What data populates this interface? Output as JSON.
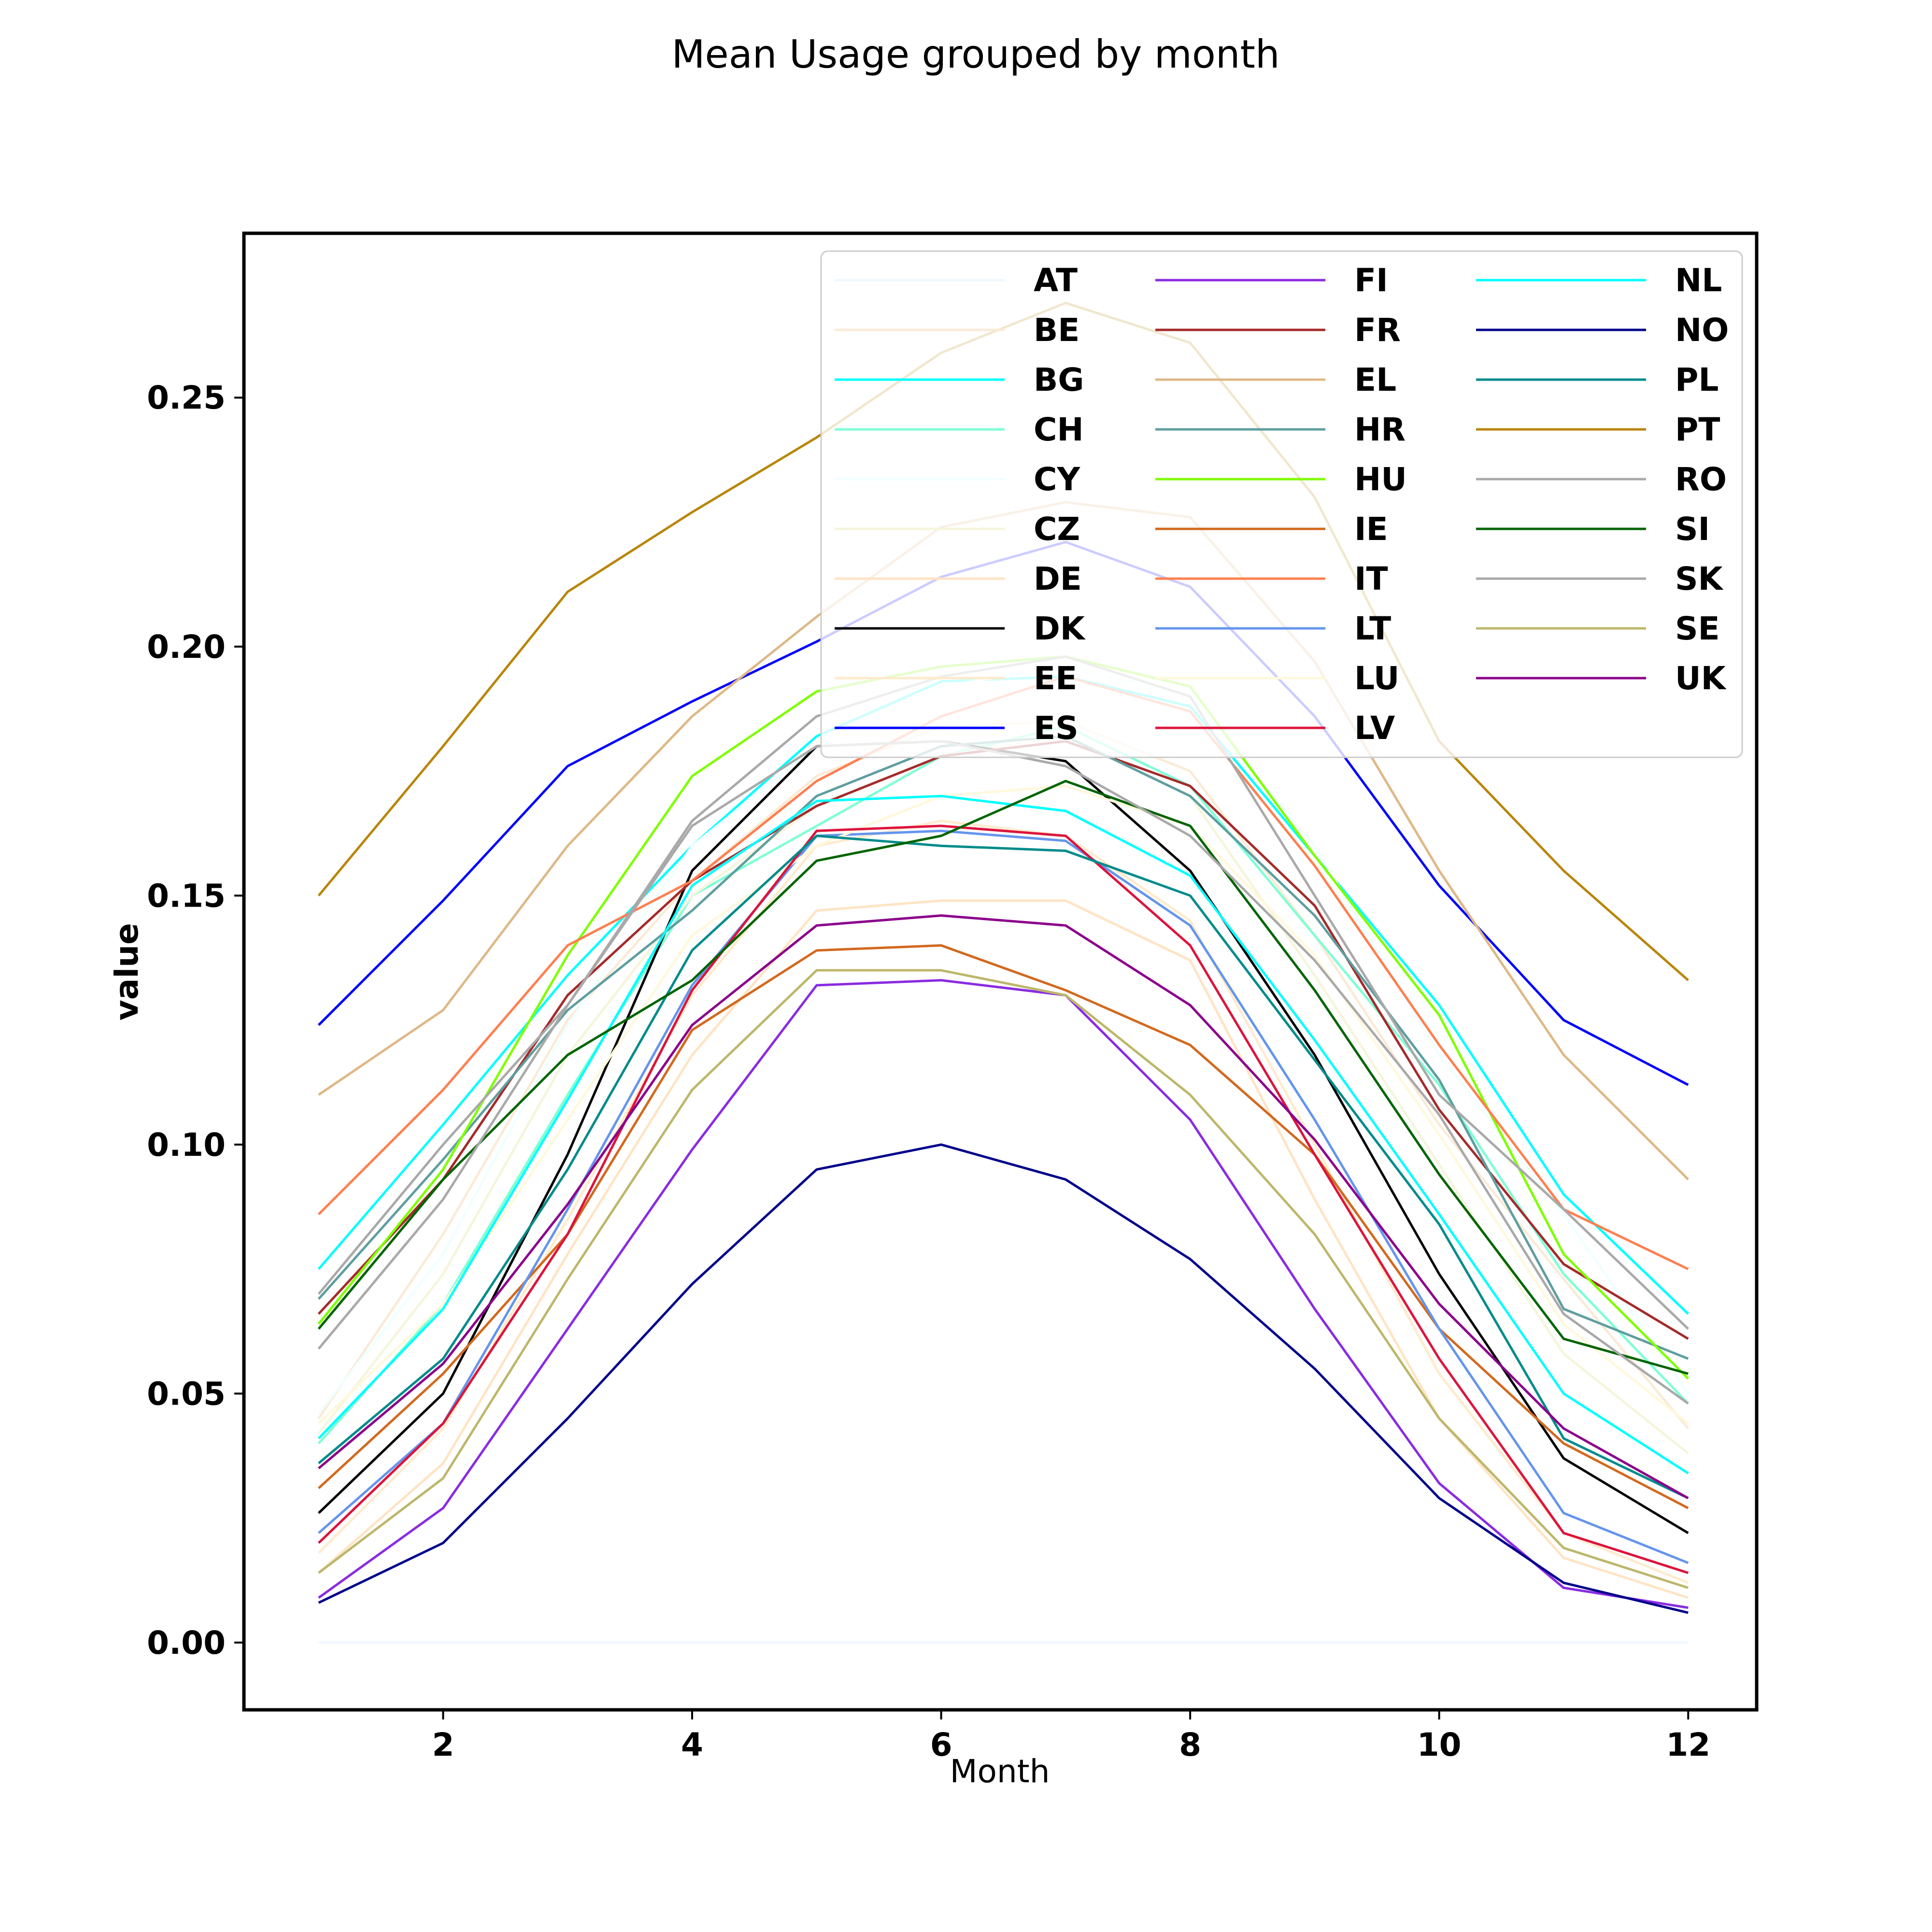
{
  "chart_data": {
    "type": "line",
    "title": "Mean Usage grouped by month",
    "xlabel": "Month",
    "ylabel": "value",
    "x": [
      1,
      2,
      3,
      4,
      5,
      6,
      7,
      8,
      9,
      10,
      11,
      12
    ],
    "xlim": [
      0.4,
      12.55
    ],
    "ylim": [
      -0.0135,
      0.283
    ],
    "xticks": [
      2,
      4,
      6,
      8,
      10,
      12
    ],
    "xtick_labels": [
      "2",
      "4",
      "6",
      "8",
      "10",
      "12"
    ],
    "yticks": [
      0.0,
      0.05,
      0.1,
      0.15,
      0.2,
      0.25
    ],
    "ytick_labels": [
      "0.00",
      "0.05",
      "0.10",
      "0.15",
      "0.20",
      "0.25"
    ],
    "grid": false,
    "legend": {
      "placement": "top-right",
      "columns": 3
    },
    "series": [
      {
        "name": "AT",
        "color": "#f0f8ff",
        "values": [
          0.0,
          0.0,
          0.0,
          0.0,
          0.0,
          0.0,
          0.0,
          0.0,
          0.0,
          0.0,
          0.0,
          0.0
        ]
      },
      {
        "name": "BE",
        "color": "#faebd7",
        "values": [
          0.045,
          0.082,
          0.125,
          0.153,
          0.174,
          0.184,
          0.185,
          0.175,
          0.142,
          0.104,
          0.073,
          0.043
        ]
      },
      {
        "name": "BG",
        "color": "#00ffff",
        "values": [
          0.075,
          0.104,
          0.134,
          0.16,
          0.182,
          0.193,
          0.194,
          0.188,
          0.158,
          0.128,
          0.09,
          0.066
        ]
      },
      {
        "name": "CH",
        "color": "#7fffd4",
        "values": [
          0.04,
          0.068,
          0.11,
          0.15,
          0.164,
          0.178,
          0.184,
          0.172,
          0.142,
          0.112,
          0.074,
          0.048
        ]
      },
      {
        "name": "CY",
        "color": "#f0ffff",
        "values": [
          0.046,
          0.078,
          0.124,
          0.16,
          0.18,
          0.192,
          0.196,
          0.19,
          0.16,
          0.118,
          0.086,
          0.05
        ]
      },
      {
        "name": "CZ",
        "color": "#f5f5dc",
        "values": [
          0.042,
          0.074,
          0.118,
          0.15,
          0.168,
          0.178,
          0.182,
          0.17,
          0.134,
          0.096,
          0.058,
          0.038
        ]
      },
      {
        "name": "DE",
        "color": "#ffe4c4",
        "values": [
          0.014,
          0.036,
          0.078,
          0.118,
          0.147,
          0.149,
          0.149,
          0.137,
          0.089,
          0.045,
          0.017,
          0.009
        ]
      },
      {
        "name": "DK",
        "color": "#000000",
        "values": [
          0.026,
          0.05,
          0.098,
          0.155,
          0.18,
          0.181,
          0.177,
          0.155,
          0.118,
          0.074,
          0.037,
          0.022
        ]
      },
      {
        "name": "EE",
        "color": "#ffebcd",
        "values": [
          0.018,
          0.043,
          0.085,
          0.13,
          0.16,
          0.165,
          0.162,
          0.145,
          0.1,
          0.054,
          0.022,
          0.012
        ]
      },
      {
        "name": "ES",
        "color": "#0000ff",
        "values": [
          0.124,
          0.149,
          0.176,
          0.189,
          0.201,
          0.214,
          0.221,
          0.212,
          0.186,
          0.152,
          0.125,
          0.112
        ]
      },
      {
        "name": "FI",
        "color": "#8a2be2",
        "values": [
          0.009,
          0.027,
          0.063,
          0.099,
          0.132,
          0.133,
          0.13,
          0.105,
          0.067,
          0.032,
          0.011,
          0.007
        ]
      },
      {
        "name": "FR",
        "color": "#a52a2a",
        "values": [
          0.066,
          0.093,
          0.13,
          0.153,
          0.168,
          0.178,
          0.181,
          0.172,
          0.148,
          0.107,
          0.076,
          0.061
        ]
      },
      {
        "name": "EL",
        "color": "#deb887",
        "values": [
          0.11,
          0.127,
          0.16,
          0.186,
          0.206,
          0.224,
          0.229,
          0.226,
          0.197,
          0.155,
          0.118,
          0.093
        ]
      },
      {
        "name": "HR",
        "color": "#5f9ea0",
        "values": [
          0.069,
          0.097,
          0.127,
          0.147,
          0.17,
          0.18,
          0.182,
          0.17,
          0.146,
          0.113,
          0.067,
          0.057
        ]
      },
      {
        "name": "HU",
        "color": "#7fff00",
        "values": [
          0.064,
          0.095,
          0.138,
          0.174,
          0.191,
          0.196,
          0.198,
          0.192,
          0.158,
          0.126,
          0.078,
          0.053
        ]
      },
      {
        "name": "IE",
        "color": "#d2691e",
        "values": [
          0.031,
          0.054,
          0.082,
          0.123,
          0.139,
          0.14,
          0.131,
          0.12,
          0.098,
          0.063,
          0.04,
          0.027
        ]
      },
      {
        "name": "IT",
        "color": "#ff7f50",
        "values": [
          0.086,
          0.111,
          0.14,
          0.153,
          0.173,
          0.186,
          0.194,
          0.187,
          0.156,
          0.12,
          0.087,
          0.075
        ]
      },
      {
        "name": "LT",
        "color": "#6495ed",
        "values": [
          0.022,
          0.044,
          0.087,
          0.132,
          0.162,
          0.163,
          0.161,
          0.144,
          0.105,
          0.063,
          0.026,
          0.016
        ]
      },
      {
        "name": "LU",
        "color": "#fff8dc",
        "values": [
          0.044,
          0.068,
          0.105,
          0.142,
          0.16,
          0.17,
          0.172,
          0.164,
          0.138,
          0.102,
          0.064,
          0.044
        ]
      },
      {
        "name": "LV",
        "color": "#dc143c",
        "values": [
          0.02,
          0.044,
          0.082,
          0.131,
          0.163,
          0.164,
          0.162,
          0.14,
          0.098,
          0.057,
          0.022,
          0.014
        ]
      },
      {
        "name": "NL",
        "color": "#00ffff",
        "values": [
          0.041,
          0.067,
          0.109,
          0.152,
          0.169,
          0.17,
          0.167,
          0.154,
          0.121,
          0.086,
          0.05,
          0.034
        ]
      },
      {
        "name": "NO",
        "color": "#00008b",
        "values": [
          0.008,
          0.02,
          0.045,
          0.072,
          0.095,
          0.1,
          0.093,
          0.077,
          0.055,
          0.029,
          0.012,
          0.006
        ]
      },
      {
        "name": "PL",
        "color": "#008b8b",
        "values": [
          0.036,
          0.057,
          0.095,
          0.139,
          0.162,
          0.16,
          0.159,
          0.15,
          0.117,
          0.084,
          0.041,
          0.029
        ]
      },
      {
        "name": "PT",
        "color": "#b8860b",
        "values": [
          0.15,
          0.18,
          0.211,
          0.227,
          0.242,
          0.259,
          0.269,
          0.261,
          0.23,
          0.181,
          0.155,
          0.133
        ]
      },
      {
        "name": "RO",
        "color": "#a9a9a9",
        "values": [
          0.07,
          0.1,
          0.128,
          0.165,
          0.186,
          0.194,
          0.198,
          0.19,
          0.15,
          0.11,
          0.087,
          0.063
        ]
      },
      {
        "name": "SI",
        "color": "#006400",
        "values": [
          0.063,
          0.093,
          0.118,
          0.133,
          0.157,
          0.162,
          0.173,
          0.164,
          0.131,
          0.094,
          0.061,
          0.054
        ]
      },
      {
        "name": "SK",
        "color": "#a9a9a9",
        "values": [
          0.059,
          0.089,
          0.128,
          0.164,
          0.18,
          0.181,
          0.176,
          0.162,
          0.137,
          0.106,
          0.066,
          0.048
        ]
      },
      {
        "name": "SE",
        "color": "#bdb76b",
        "values": [
          0.014,
          0.033,
          0.073,
          0.111,
          0.135,
          0.135,
          0.13,
          0.11,
          0.082,
          0.045,
          0.019,
          0.011
        ]
      },
      {
        "name": "UK",
        "color": "#8b008b",
        "values": [
          0.035,
          0.056,
          0.088,
          0.124,
          0.144,
          0.146,
          0.144,
          0.128,
          0.101,
          0.068,
          0.043,
          0.029
        ]
      }
    ]
  }
}
